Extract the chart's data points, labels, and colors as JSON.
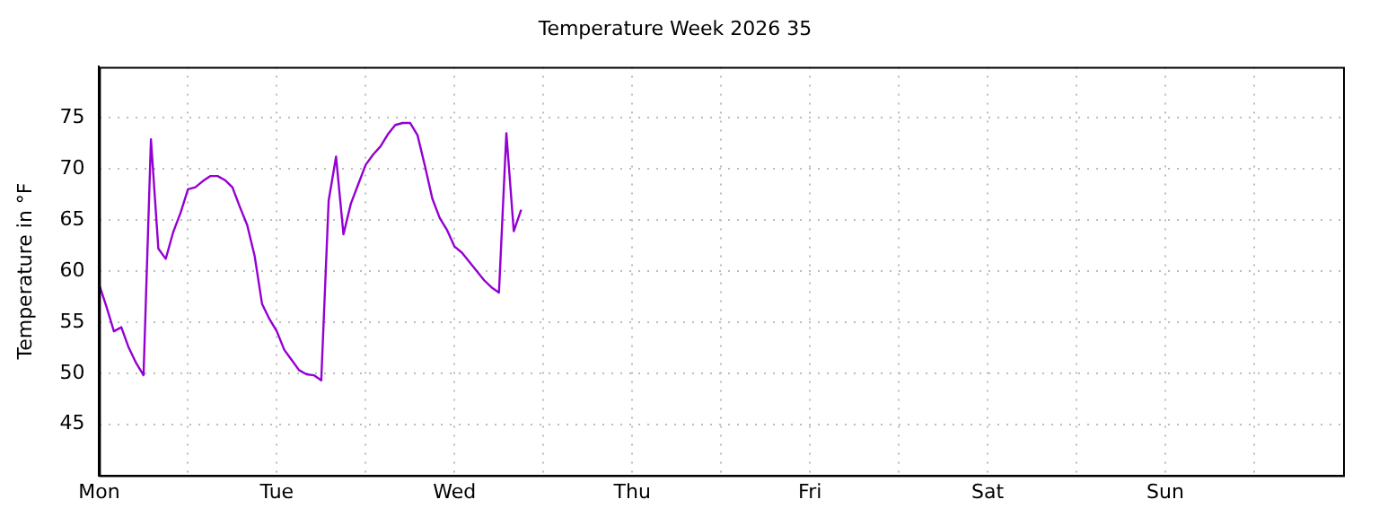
{
  "chart_data": {
    "type": "line",
    "title": "Temperature Week 2026 35",
    "ylabel": "Temperature in °F",
    "categories": [
      "Mon",
      null,
      null,
      null,
      null,
      null,
      null,
      null,
      null,
      null,
      null,
      null,
      null,
      null,
      null,
      null,
      null,
      null,
      null,
      null,
      null,
      null,
      null,
      null,
      "Tue",
      null,
      null,
      null,
      null,
      null,
      null,
      null,
      null,
      null,
      null,
      null,
      null,
      null,
      null,
      null,
      null,
      null,
      null,
      null,
      null,
      null,
      null,
      null,
      "Wed",
      null,
      null,
      null,
      null,
      null,
      null,
      null,
      null,
      null,
      null,
      null,
      null,
      null,
      null,
      null,
      null,
      null,
      null,
      null,
      null,
      null,
      null,
      null,
      "Thu",
      null,
      null,
      null,
      null,
      null,
      null,
      null,
      null,
      null,
      null,
      null,
      null,
      null,
      null,
      null,
      null,
      null,
      null,
      null,
      null,
      null,
      null,
      null,
      "Fri",
      null,
      null,
      null,
      null,
      null,
      null,
      null,
      null,
      null,
      null,
      null,
      null,
      null,
      null,
      null,
      null,
      null,
      null,
      null,
      null,
      null,
      null,
      null,
      "Sat",
      null,
      null,
      null,
      null,
      null,
      null,
      null,
      null,
      null,
      null,
      null,
      null,
      null,
      null,
      null,
      null,
      null,
      null,
      null,
      null,
      null,
      null,
      null,
      "Sun",
      null,
      null,
      null,
      null,
      null,
      null,
      null,
      null,
      null,
      null,
      null,
      null,
      null,
      null,
      null,
      null,
      null,
      null,
      null,
      null,
      null,
      null,
      null
    ],
    "ylim": [
      40,
      80
    ],
    "yticks": [
      45,
      50,
      55,
      60,
      65,
      70,
      75
    ],
    "grid": true,
    "legend": false,
    "marker": "none",
    "line_style": "solid",
    "series": [
      {
        "color": "#9400d3",
        "values": [
          58.7,
          56.5,
          54.1,
          54.5,
          52.5,
          51.0,
          49.8,
          72.9,
          62.2,
          61.2,
          63.8,
          65.7,
          68.0,
          68.2,
          68.8,
          69.3,
          69.3,
          68.9,
          68.2,
          66.3,
          64.5,
          61.5,
          56.8,
          55.3,
          54.1,
          52.3,
          51.3,
          50.3,
          49.9,
          49.8,
          49.3,
          66.9,
          71.2,
          63.6,
          66.6,
          68.5,
          70.4,
          71.4,
          72.2,
          73.4,
          74.3,
          74.5,
          74.5,
          73.3,
          70.3,
          67.1,
          65.2,
          64.0,
          62.4,
          61.8,
          60.9,
          60.0,
          59.1,
          58.4,
          57.9,
          73.5,
          63.9,
          66.0,
          null,
          null,
          null,
          null,
          null,
          null,
          null,
          null,
          null,
          null,
          null,
          null,
          null,
          null,
          null,
          null,
          null,
          null,
          null,
          null,
          null,
          null,
          null,
          null,
          null,
          null,
          null,
          null,
          null,
          null,
          null,
          null,
          null,
          null,
          null,
          null,
          null,
          null,
          null,
          null,
          null,
          null,
          null,
          null,
          null,
          null,
          null,
          null,
          null,
          null,
          null,
          null,
          null,
          null,
          null,
          null,
          null,
          null,
          null,
          null,
          null,
          null,
          null,
          null,
          null,
          null,
          null,
          null,
          null,
          null,
          null,
          null,
          null,
          null,
          null,
          null,
          null,
          null,
          null,
          null,
          null,
          null,
          null,
          null,
          null,
          null,
          null,
          null,
          null,
          null,
          null,
          null,
          null,
          null,
          null,
          null,
          null,
          null,
          null,
          null,
          null,
          null,
          null,
          null,
          null,
          null,
          null,
          null,
          null,
          null
        ]
      }
    ]
  }
}
